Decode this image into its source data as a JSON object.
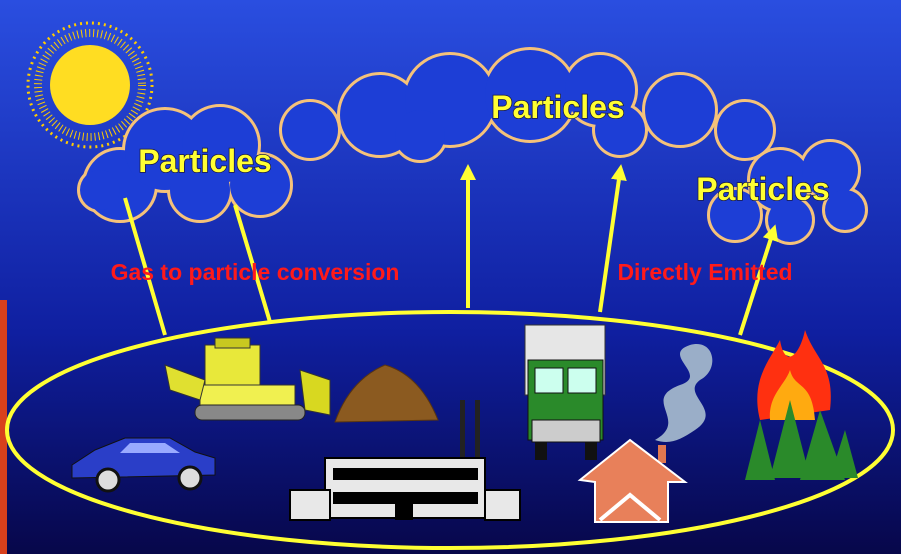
{
  "clouds": [
    {
      "label": "Particles"
    },
    {
      "label": "Particles"
    },
    {
      "label": "Particles"
    }
  ],
  "annotations": {
    "left": "Gas to particle conversion",
    "right": "Directly Emitted"
  }
}
